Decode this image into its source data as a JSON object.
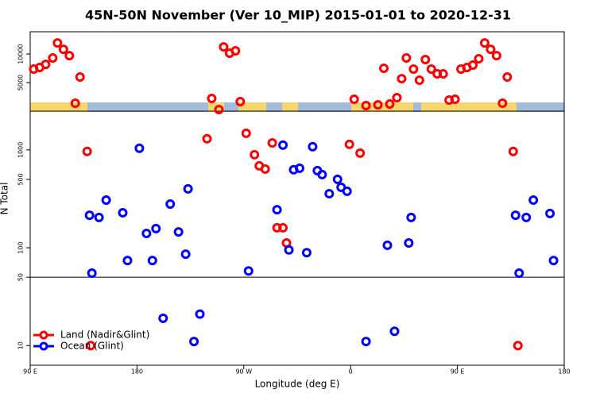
{
  "chart_data": [
    {
      "type": "scatter",
      "title": "45N-50N November (Ver 10_MIP)   2015-01-01 to 2020-12-31",
      "x": [
        -267,
        -262,
        -257,
        -251,
        -247,
        -242,
        -237,
        -232,
        -228,
        -117,
        -111,
        -107,
        -102,
        -97,
        -93,
        3,
        13,
        23,
        28,
        33,
        39,
        43,
        47,
        53,
        58,
        63,
        68,
        73,
        78,
        83,
        88,
        93,
        98,
        103,
        108,
        113,
        118,
        123,
        128,
        132
      ],
      "values": [
        7360,
        7640,
        8190,
        9310,
        11940,
        10830,
        9720,
        1390,
        5970,
        2220,
        280,
        11250,
        10140,
        10560,
        1670,
        2080,
        970,
        1110,
        7500,
        1250,
        2360,
        5690,
        9310,
        7360,
        5420,
        9030,
        7360,
        6530,
        6530,
        1940,
        2080,
        7360,
        7640,
        8060,
        9170,
        11940,
        10830,
        9720,
        1390,
        5970
      ],
      "color": "#ff0000",
      "ylim": [
        0,
        13900
      ],
      "yticks": [
        5000,
        10000
      ]
    },
    {
      "type": "scatter",
      "xlabel": "Longitude (deg E)",
      "ylabel": "N Total",
      "xlim": [
        -270,
        180
      ],
      "xticks": [
        {
          "value": -270,
          "label": "90 E"
        },
        {
          "value": -180,
          "label": "180"
        },
        {
          "value": -90,
          "label": "90 W"
        },
        0,
        {
          "value": 90,
          "label": "90 E"
        },
        180
      ],
      "ylim": [
        6.3,
        2490
      ],
      "log_y": true,
      "yticks": [
        10,
        50,
        100,
        500,
        1000
      ],
      "reference_line": 50,
      "legend": "lower left",
      "series": [
        {
          "name": "Land (Nadir&Glint)",
          "color": "#ff0000",
          "x": [
            -222,
            -121,
            -88,
            -81,
            -77,
            -72,
            -66,
            -62,
            -57,
            -54,
            -1,
            8,
            137,
            -219,
            141
          ],
          "values": [
            964,
            1300,
            1480,
            894,
            688,
            638,
            1180,
            160,
            160,
            112,
            1140,
            928,
            964,
            10,
            10
          ]
        },
        {
          "name": "Ocean (Glint)",
          "color": "#0000ff",
          "x": [
            -220,
            -218,
            -212,
            -206,
            -192,
            -188,
            -178,
            -172,
            -167,
            -164,
            -158,
            -152,
            -145,
            -139,
            -137,
            -132,
            -127,
            -86,
            -62,
            -57,
            -52,
            -48,
            -43,
            -37,
            -32,
            -28,
            -24,
            -18,
            -11,
            -8,
            -3,
            13,
            31,
            37,
            49,
            51,
            139,
            142,
            148,
            154,
            168,
            171
          ],
          "values": [
            215,
            55,
            204,
            307,
            228,
            74,
            1040,
            140,
            74,
            157,
            19,
            280,
            145,
            86,
            400,
            11,
            21,
            58,
            245,
            1120,
            95,
            627,
            650,
            89,
            1080,
            615,
            560,
            357,
            500,
            415,
            378,
            11,
            106,
            14,
            112,
            204,
            215,
            55,
            204,
            307,
            224,
            74
          ]
        }
      ]
    }
  ]
}
